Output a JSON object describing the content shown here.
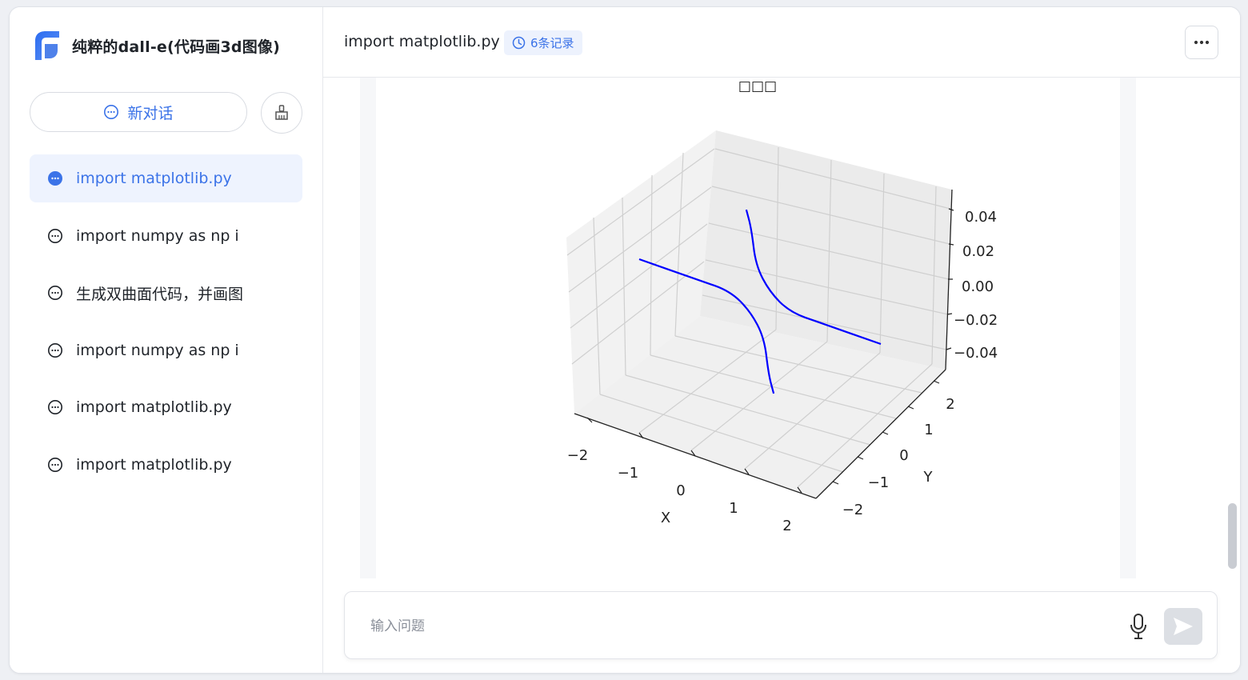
{
  "app": {
    "title": "纯粹的dall-e(代码画3d图像)"
  },
  "sidebar": {
    "new_chat_label": "新对话",
    "items": [
      {
        "label": "import matplotlib.py",
        "active": true
      },
      {
        "label": "import numpy as np i",
        "active": false
      },
      {
        "label": "生成双曲面代码，并画图",
        "active": false
      },
      {
        "label": "import numpy as np i",
        "active": false
      },
      {
        "label": "import matplotlib.py",
        "active": false
      },
      {
        "label": "import matplotlib.py",
        "active": false
      }
    ]
  },
  "header": {
    "title": "import matplotlib.py",
    "history_badge": "6条记录"
  },
  "input": {
    "placeholder": "输入问题",
    "value": ""
  },
  "colors": {
    "accent": "#3b73e8",
    "active_bg": "#eef3fe",
    "curve": "#0000ff"
  },
  "chart_data": {
    "type": "line3d",
    "title": "□□□",
    "xlabel": "X",
    "ylabel": "Y",
    "zlabel": "",
    "xlim": [
      -2,
      2
    ],
    "ylim": [
      -2,
      2
    ],
    "zlim": [
      -0.05,
      0.05
    ],
    "x_ticks": [
      "−2",
      "−1",
      "0",
      "1",
      "2"
    ],
    "y_ticks": [
      "−2",
      "−1",
      "0",
      "1",
      "2"
    ],
    "z_ticks": [
      "0.04",
      "0.02",
      "0.00",
      "−0.02",
      "−0.04"
    ],
    "grid": true,
    "series": [
      {
        "color": "#0000ff",
        "points": [
          [
            -2.0,
            0.0,
            0.0
          ],
          [
            -1.0,
            0.0,
            0.0
          ],
          [
            -0.5,
            0.0,
            0.0
          ],
          [
            0.0,
            -0.3,
            0.0
          ],
          [
            0.5,
            -0.8,
            0.0
          ],
          [
            1.0,
            -1.6,
            0.0
          ],
          [
            1.3,
            -2.0,
            0.0
          ]
        ]
      },
      {
        "color": "#0000ff",
        "points": [
          [
            -1.3,
            2.0,
            0.0
          ],
          [
            -1.0,
            1.6,
            0.0
          ],
          [
            -0.5,
            0.8,
            0.0
          ],
          [
            0.0,
            0.3,
            0.0
          ],
          [
            0.5,
            0.0,
            0.0
          ],
          [
            1.0,
            0.0,
            0.0
          ],
          [
            2.0,
            0.0,
            0.0
          ]
        ]
      }
    ]
  }
}
